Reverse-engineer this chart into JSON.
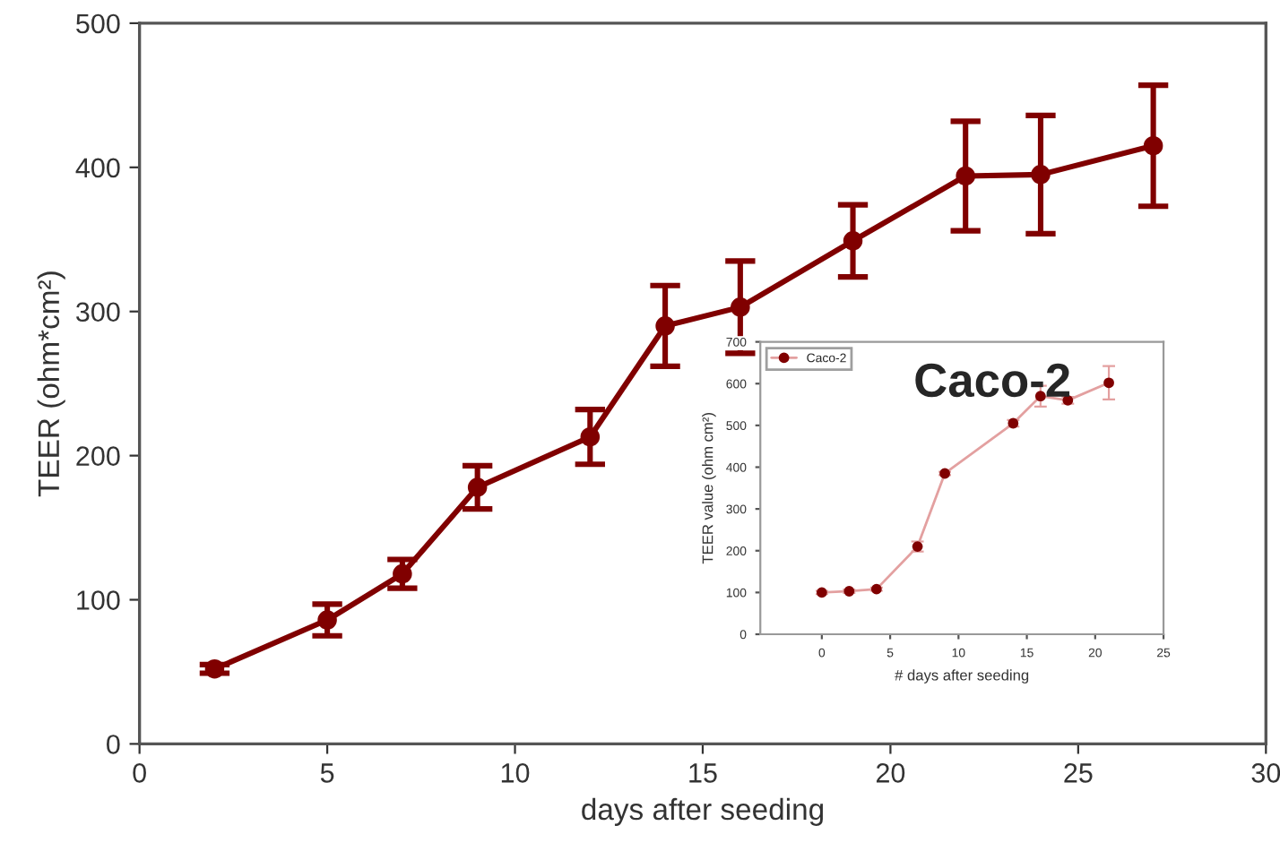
{
  "chart_data": [
    {
      "type": "line",
      "xlabel": "days after seeding",
      "ylabel": "TEER (ohm*cm²)",
      "x": [
        2,
        5,
        7,
        9,
        12,
        14,
        16,
        19,
        22,
        24,
        27
      ],
      "series": [
        {
          "color": "#800000",
          "values": [
            52,
            86,
            118,
            178,
            213,
            290,
            303,
            349,
            394,
            395,
            415
          ],
          "errors": [
            3,
            11,
            10,
            15,
            19,
            28,
            32,
            25,
            38,
            41,
            42
          ]
        }
      ],
      "xlim": [
        0,
        30
      ],
      "xticks": [
        0,
        5,
        10,
        15,
        20,
        25,
        30
      ],
      "ylim": [
        0,
        500
      ],
      "yticks": [
        0,
        100,
        200,
        300,
        400,
        500
      ],
      "marker": "circle",
      "line_style": "solid",
      "grid": false,
      "legend": false
    },
    {
      "type": "line",
      "xlabel": "# days after seeding",
      "ylabel": "TEER value (ohm cm²)",
      "annotations": [
        "Caco-2"
      ],
      "x": [
        0,
        2,
        4,
        7,
        9,
        14,
        16,
        18,
        21
      ],
      "series": [
        {
          "name": "Caco-2",
          "color": "#e3a0a0",
          "values": [
            100,
            103,
            108,
            210,
            385,
            505,
            570,
            560,
            602
          ],
          "errors": [
            4,
            4,
            4,
            12,
            4,
            8,
            25,
            8,
            40
          ]
        }
      ],
      "xlim": [
        -4.5,
        25
      ],
      "xticks": [
        0,
        5,
        10,
        15,
        20,
        25
      ],
      "ylim": [
        0,
        700
      ],
      "yticks": [
        0,
        100,
        200,
        300,
        400,
        500,
        600,
        700
      ],
      "marker": "circle",
      "line_style": "solid",
      "grid": false,
      "legend": "top left"
    }
  ]
}
